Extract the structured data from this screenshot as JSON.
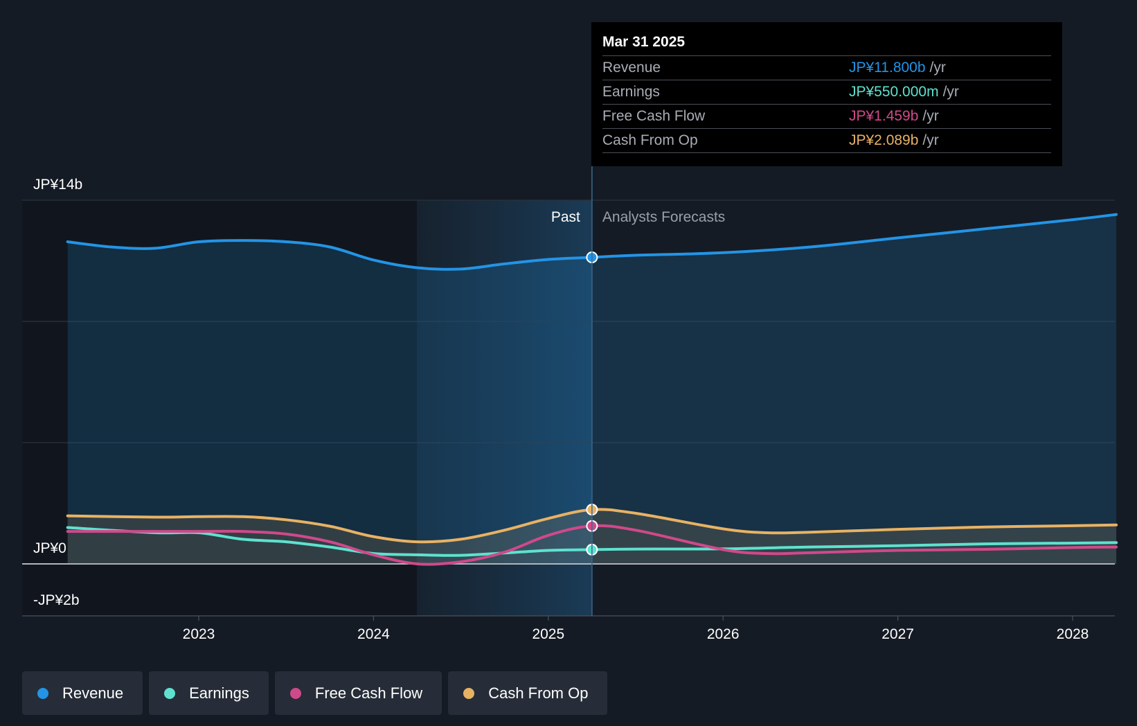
{
  "chart_data": {
    "type": "line",
    "currency": "JP¥",
    "y_axis": {
      "max_label": "JP¥14b",
      "zero_label": "JP¥0",
      "min_label": "-JP¥2b",
      "ylim": [
        -2,
        14
      ],
      "unit": "b"
    },
    "x_axis": {
      "ticks": [
        "2023",
        "2024",
        "2025",
        "2026",
        "2027",
        "2028"
      ]
    },
    "divider_labels": {
      "past": "Past",
      "forecast": "Analysts Forecasts"
    },
    "highlight_date": 2025.25,
    "series": [
      {
        "name": "Revenue",
        "color": "#2394e6",
        "fill": true,
        "points": [
          [
            2022.25,
            12.4
          ],
          [
            2022.5,
            12.2
          ],
          [
            2022.75,
            12.15
          ],
          [
            2023.0,
            12.4
          ],
          [
            2023.25,
            12.45
          ],
          [
            2023.5,
            12.4
          ],
          [
            2023.75,
            12.2
          ],
          [
            2024.0,
            11.7
          ],
          [
            2024.25,
            11.4
          ],
          [
            2024.5,
            11.35
          ],
          [
            2024.75,
            11.55
          ],
          [
            2025.0,
            11.72
          ],
          [
            2025.25,
            11.8
          ],
          [
            2025.5,
            11.88
          ],
          [
            2026.0,
            11.98
          ],
          [
            2026.5,
            12.2
          ],
          [
            2027.0,
            12.55
          ],
          [
            2027.5,
            12.9
          ],
          [
            2028.0,
            13.25
          ],
          [
            2028.25,
            13.45
          ]
        ]
      },
      {
        "name": "Earnings",
        "color": "#5ee2cf",
        "fill": false,
        "points": [
          [
            2022.25,
            1.4
          ],
          [
            2022.75,
            1.2
          ],
          [
            2023.0,
            1.2
          ],
          [
            2023.25,
            0.95
          ],
          [
            2023.5,
            0.85
          ],
          [
            2023.75,
            0.65
          ],
          [
            2024.0,
            0.4
          ],
          [
            2024.25,
            0.35
          ],
          [
            2024.5,
            0.33
          ],
          [
            2024.75,
            0.42
          ],
          [
            2025.0,
            0.52
          ],
          [
            2025.25,
            0.55
          ],
          [
            2025.5,
            0.57
          ],
          [
            2026.0,
            0.58
          ],
          [
            2026.5,
            0.65
          ],
          [
            2027.0,
            0.7
          ],
          [
            2027.5,
            0.77
          ],
          [
            2028.0,
            0.8
          ],
          [
            2028.25,
            0.82
          ]
        ]
      },
      {
        "name": "Free Cash Flow",
        "color": "#d0498a",
        "fill": false,
        "points": [
          [
            2022.25,
            1.25
          ],
          [
            2022.75,
            1.25
          ],
          [
            2023.0,
            1.25
          ],
          [
            2023.25,
            1.25
          ],
          [
            2023.5,
            1.15
          ],
          [
            2023.75,
            0.85
          ],
          [
            2024.0,
            0.35
          ],
          [
            2024.25,
            0.0
          ],
          [
            2024.5,
            0.08
          ],
          [
            2024.75,
            0.45
          ],
          [
            2025.0,
            1.1
          ],
          [
            2025.25,
            1.459
          ],
          [
            2025.5,
            1.3
          ],
          [
            2026.0,
            0.55
          ],
          [
            2026.25,
            0.4
          ],
          [
            2026.5,
            0.43
          ],
          [
            2027.0,
            0.52
          ],
          [
            2027.5,
            0.56
          ],
          [
            2028.0,
            0.63
          ],
          [
            2028.25,
            0.65
          ]
        ]
      },
      {
        "name": "Cash From Op",
        "color": "#e8b264",
        "fill": true,
        "points": [
          [
            2022.25,
            1.85
          ],
          [
            2022.75,
            1.8
          ],
          [
            2023.0,
            1.82
          ],
          [
            2023.25,
            1.82
          ],
          [
            2023.5,
            1.7
          ],
          [
            2023.75,
            1.45
          ],
          [
            2024.0,
            1.05
          ],
          [
            2024.25,
            0.85
          ],
          [
            2024.5,
            0.95
          ],
          [
            2024.75,
            1.3
          ],
          [
            2025.0,
            1.75
          ],
          [
            2025.25,
            2.089
          ],
          [
            2025.5,
            1.95
          ],
          [
            2026.0,
            1.35
          ],
          [
            2026.25,
            1.2
          ],
          [
            2026.5,
            1.22
          ],
          [
            2027.0,
            1.33
          ],
          [
            2027.5,
            1.42
          ],
          [
            2028.0,
            1.47
          ],
          [
            2028.25,
            1.5
          ]
        ]
      }
    ]
  },
  "tooltip": {
    "date": "Mar 31 2025",
    "rows": [
      {
        "label": "Revenue",
        "value": "JP¥11.800b",
        "unit": "/yr",
        "color": "#2394e6"
      },
      {
        "label": "Earnings",
        "value": "JP¥550.000m",
        "unit": "/yr",
        "color": "#5ee2cf"
      },
      {
        "label": "Free Cash Flow",
        "value": "JP¥1.459b",
        "unit": "/yr",
        "color": "#d0498a"
      },
      {
        "label": "Cash From Op",
        "value": "JP¥2.089b",
        "unit": "/yr",
        "color": "#e8b264"
      }
    ]
  },
  "legend": [
    {
      "label": "Revenue",
      "color": "#2394e6"
    },
    {
      "label": "Earnings",
      "color": "#5ee2cf"
    },
    {
      "label": "Free Cash Flow",
      "color": "#d0498a"
    },
    {
      "label": "Cash From Op",
      "color": "#e8b264"
    }
  ]
}
